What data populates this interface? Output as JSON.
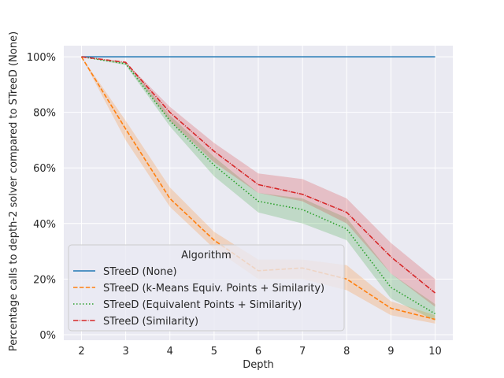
{
  "chart_data": {
    "type": "line",
    "xlabel": "Depth",
    "ylabel": "Percentage calls to depth-2 solver compared to STreeD (None)",
    "x": [
      2,
      3,
      4,
      5,
      6,
      7,
      8,
      9,
      10
    ],
    "xticks": [
      "2",
      "3",
      "4",
      "5",
      "6",
      "7",
      "8",
      "9",
      "10"
    ],
    "yticks": [
      "0%",
      "20%",
      "40%",
      "60%",
      "80%",
      "100%"
    ],
    "ytick_values": [
      0,
      20,
      40,
      60,
      80,
      100
    ],
    "xlim": [
      1.6,
      10.4
    ],
    "ylim": [
      -2,
      104
    ],
    "grid": true,
    "legend": {
      "title": "Algorithm",
      "placement": "lower-left"
    },
    "series": [
      {
        "name": "STreeD (None)",
        "color": "#1f77b4",
        "dash": "solid",
        "values": [
          100,
          100,
          100,
          100,
          100,
          100,
          100,
          100,
          100
        ]
      },
      {
        "name": "STreeD (k-Means Equiv. Points + Similarity)",
        "color": "#ff7f0e",
        "dash": "dashed",
        "values": [
          100,
          74,
          49,
          34,
          23,
          24,
          20,
          9.5,
          5.5
        ],
        "band_low": [
          100,
          70,
          46,
          31,
          20,
          20,
          16,
          7,
          4
        ],
        "band_high": [
          100,
          77,
          53,
          37,
          27,
          27,
          25,
          12,
          7
        ]
      },
      {
        "name": "STreeD (Equivalent Points + Similarity)",
        "color": "#2ca02c",
        "dash": "dotted",
        "values": [
          100,
          97.5,
          77,
          61,
          48,
          45,
          38,
          17,
          7.5
        ],
        "band_low": [
          100,
          97,
          75,
          57,
          44,
          40,
          34,
          13,
          5
        ],
        "band_high": [
          100,
          98,
          79,
          64,
          51,
          49,
          42,
          22,
          11
        ]
      },
      {
        "name": "STreeD (Similarity)",
        "color": "#d62728",
        "dash": "dashdot",
        "values": [
          100,
          98,
          80,
          66,
          54,
          50.5,
          44,
          28,
          15
        ],
        "band_low": [
          100,
          98,
          77,
          62,
          51,
          48,
          40,
          22,
          10
        ],
        "band_high": [
          100,
          98,
          82,
          69,
          58,
          56,
          49,
          33,
          20
        ]
      }
    ]
  }
}
